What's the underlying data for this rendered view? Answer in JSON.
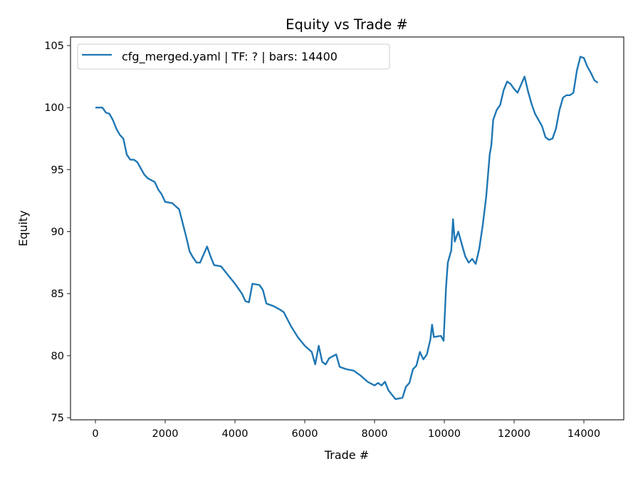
{
  "chart_data": {
    "type": "line",
    "title": "Equity vs Trade #",
    "xlabel": "Trade #",
    "ylabel": "Equity",
    "xlim": [
      -714,
      15143
    ],
    "ylim": [
      74.83,
      105.69
    ],
    "xticks": [
      0,
      2000,
      4000,
      6000,
      8000,
      10000,
      12000,
      14000
    ],
    "yticks": [
      75,
      80,
      85,
      90,
      95,
      100,
      105
    ],
    "grid": false,
    "legend_placement": "upper-left",
    "series": [
      {
        "name": "cfg_merged.yaml | TF: ? | bars: 14400",
        "color": "#1f77b4",
        "x": [
          0,
          200,
          300,
          400,
          500,
          600,
          700,
          800,
          900,
          1000,
          1100,
          1200,
          1400,
          1500,
          1700,
          1800,
          1900,
          2000,
          2200,
          2400,
          2600,
          2700,
          2800,
          2900,
          3000,
          3200,
          3300,
          3400,
          3600,
          3800,
          4000,
          4200,
          4300,
          4400,
          4500,
          4700,
          4800,
          4900,
          5100,
          5300,
          5400,
          5600,
          5800,
          6000,
          6200,
          6300,
          6400,
          6500,
          6600,
          6700,
          6900,
          7000,
          7200,
          7400,
          7600,
          7800,
          8000,
          8100,
          8200,
          8300,
          8400,
          8600,
          8800,
          8900,
          9000,
          9100,
          9200,
          9300,
          9400,
          9500,
          9600,
          9650,
          9700,
          9900,
          9980,
          10050,
          10100,
          10200,
          10250,
          10300,
          10400,
          10500,
          10600,
          10700,
          10800,
          10900,
          11000,
          11100,
          11200,
          11300,
          11350,
          11400,
          11500,
          11600,
          11700,
          11800,
          11900,
          12000,
          12100,
          12300,
          12400,
          12500,
          12600,
          12700,
          12800,
          12900,
          13000,
          13100,
          13200,
          13300,
          13400,
          13500,
          13600,
          13700,
          13800,
          13900,
          14000,
          14100,
          14200,
          14300,
          14400
        ],
        "y": [
          100,
          100,
          99.6,
          99.5,
          99,
          98.3,
          97.8,
          97.5,
          96.2,
          95.8,
          95.8,
          95.6,
          94.6,
          94.3,
          94,
          93.4,
          93.0,
          92.4,
          92.3,
          91.8,
          89.6,
          88.4,
          87.9,
          87.5,
          87.5,
          88.8,
          88.0,
          87.3,
          87.2,
          86.5,
          85.8,
          85.0,
          84.4,
          84.3,
          85.8,
          85.7,
          85.3,
          84.2,
          84.0,
          83.7,
          83.5,
          82.4,
          81.5,
          80.8,
          80.3,
          79.3,
          80.8,
          79.5,
          79.3,
          79.8,
          80.1,
          79.1,
          78.9,
          78.8,
          78.4,
          77.9,
          77.6,
          77.8,
          77.6,
          77.9,
          77.2,
          76.5,
          76.6,
          77.5,
          77.8,
          78.9,
          79.2,
          80.3,
          79.7,
          80.1,
          81.3,
          82.5,
          81.5,
          81.6,
          81.2,
          85.5,
          87.5,
          88.5,
          91.0,
          89.2,
          90.0,
          89.0,
          88.0,
          87.5,
          87.8,
          87.4,
          88.6,
          90.5,
          92.8,
          96.2,
          97.0,
          99.0,
          99.8,
          100.2,
          101.4,
          102.1,
          101.9,
          101.5,
          101.2,
          102.5,
          101.3,
          100.3,
          99.5,
          99.0,
          98.5,
          97.6,
          97.4,
          97.5,
          98.3,
          99.8,
          100.8,
          101.0,
          101.0,
          101.2,
          103.0,
          104.1,
          104.0,
          103.3,
          102.8,
          102.2,
          102.0
        ]
      }
    ]
  }
}
